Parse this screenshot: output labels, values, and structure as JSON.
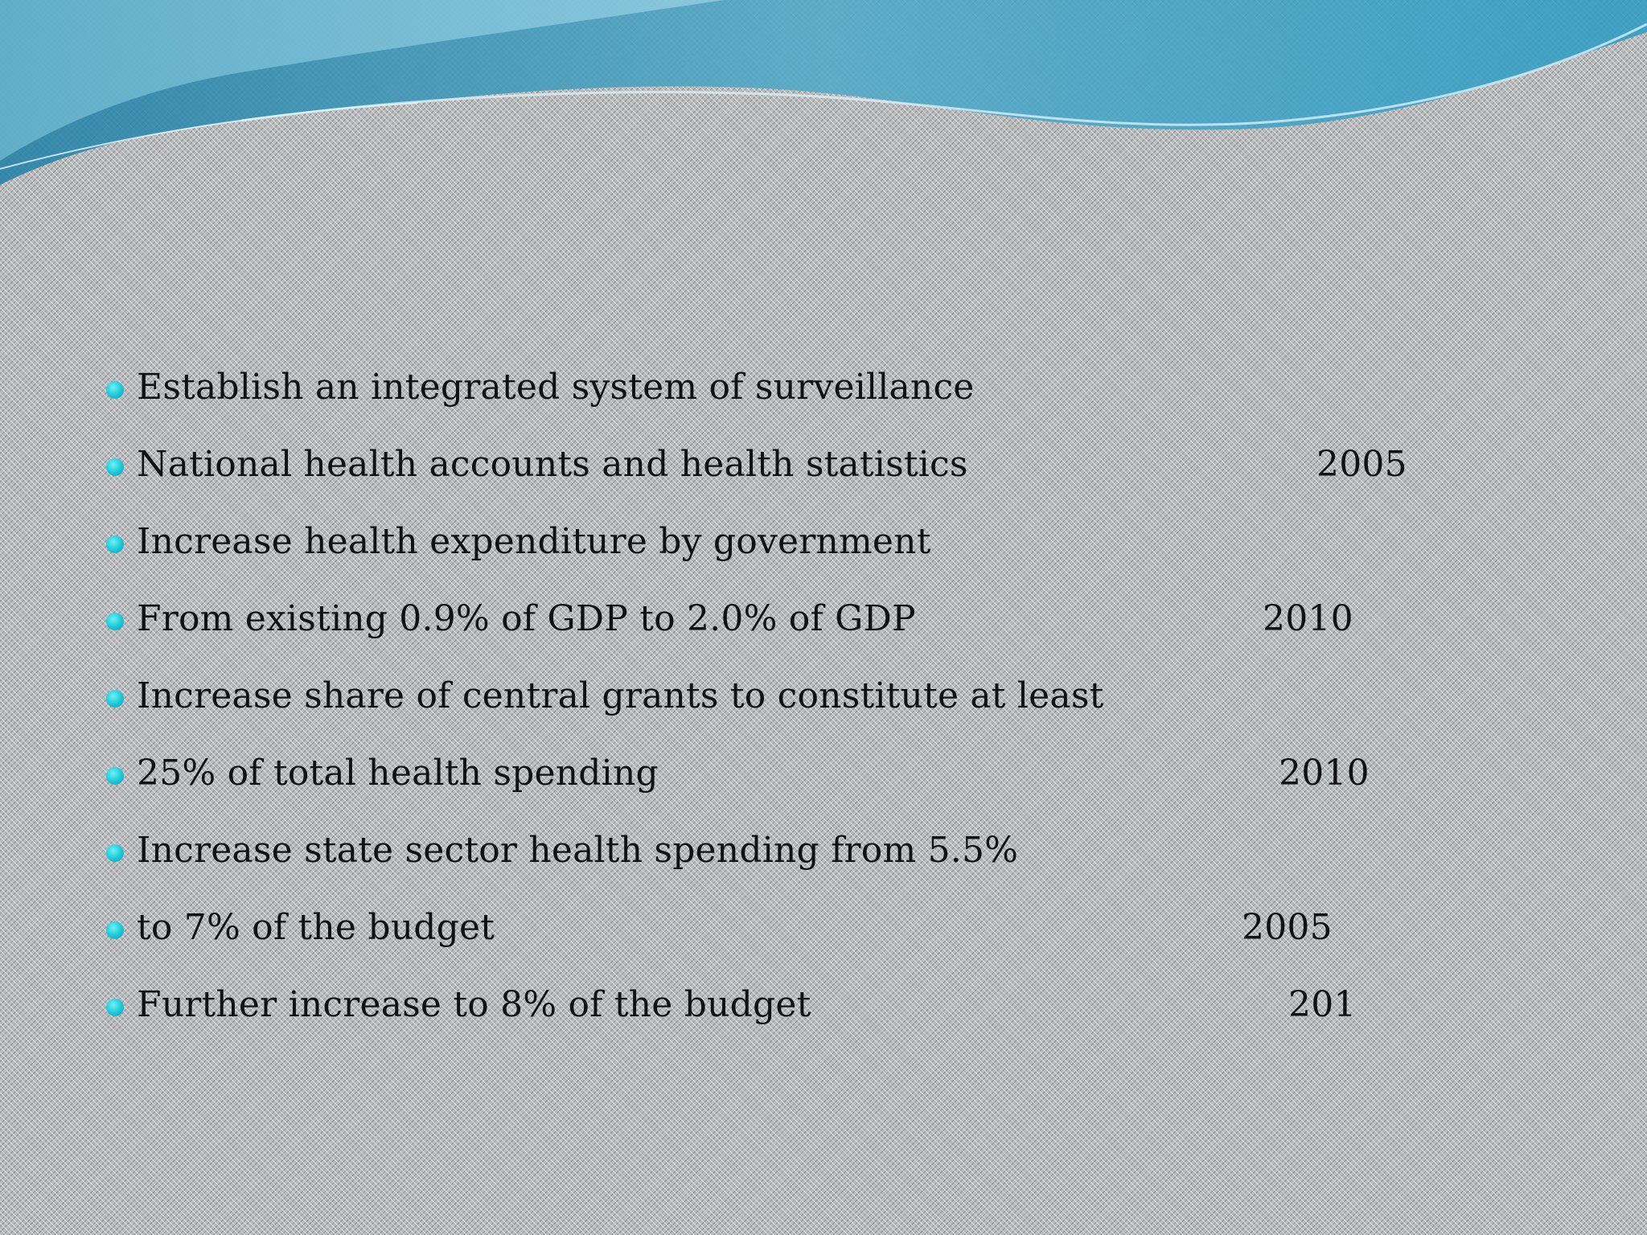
{
  "colors": {
    "bullet": "#19c6d8",
    "wave_dark": "#2f8fb0",
    "wave_light": "#8fd3e6",
    "text": "#111111"
  },
  "bullets": [
    {
      "text": "Establish an integrated system of surveillance",
      "year": ""
    },
    {
      "text": "National health accounts and health statistics",
      "year": "2005"
    },
    {
      "text": "Increase health expenditure by government",
      "year": ""
    },
    {
      "text": "From existing 0.9% of GDP to 2.0% of GDP",
      "year": "2010"
    },
    {
      "text": "Increase share of central grants to constitute at least",
      "year": ""
    },
    {
      "text": "25% of total health spending",
      "year": "2010"
    },
    {
      "text": "Increase state sector health spending from 5.5%",
      "year": ""
    },
    {
      "text": "to 7% of the budget",
      "year": "2005"
    },
    {
      "text": "Further increase to 8% of the budget",
      "year": "201"
    }
  ]
}
